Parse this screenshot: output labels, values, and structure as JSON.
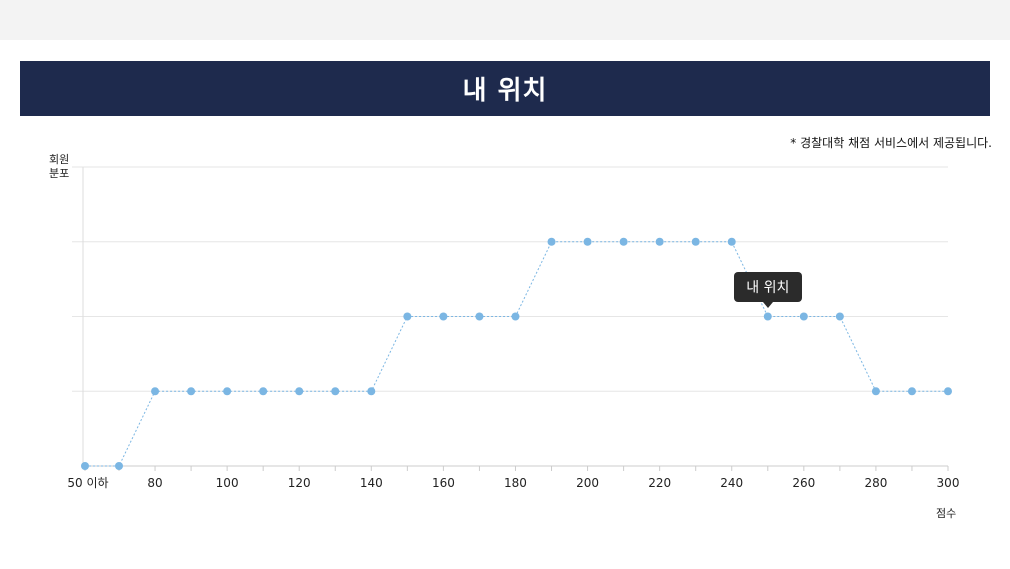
{
  "header": {
    "title": "내 위치"
  },
  "note": "* 경찰대학 채점 서비스에서 제공됩니다.",
  "chart_data": {
    "type": "line",
    "ylabel": "회원\n분포",
    "xlabel": "점수",
    "tooltip": "내 위치",
    "tooltip_x": 250,
    "x": [
      50,
      70,
      80,
      90,
      100,
      110,
      120,
      130,
      140,
      150,
      160,
      170,
      180,
      190,
      200,
      210,
      220,
      230,
      240,
      250,
      260,
      270,
      280,
      290,
      300
    ],
    "y": [
      0,
      0,
      1,
      1,
      1,
      1,
      1,
      1,
      1,
      2,
      2,
      2,
      2,
      3,
      3,
      3,
      3,
      3,
      3,
      2,
      2,
      2,
      1,
      1,
      1
    ],
    "ylim": [
      0,
      4
    ],
    "xticks": [
      50,
      80,
      100,
      120,
      140,
      160,
      180,
      200,
      220,
      240,
      260,
      280,
      300
    ],
    "xtick_labels": [
      "50 이하",
      "80",
      "100",
      "120",
      "140",
      "160",
      "180",
      "200",
      "220",
      "240",
      "260",
      "280",
      "300"
    ],
    "line_color": "#7bb6e3",
    "grid": true
  }
}
